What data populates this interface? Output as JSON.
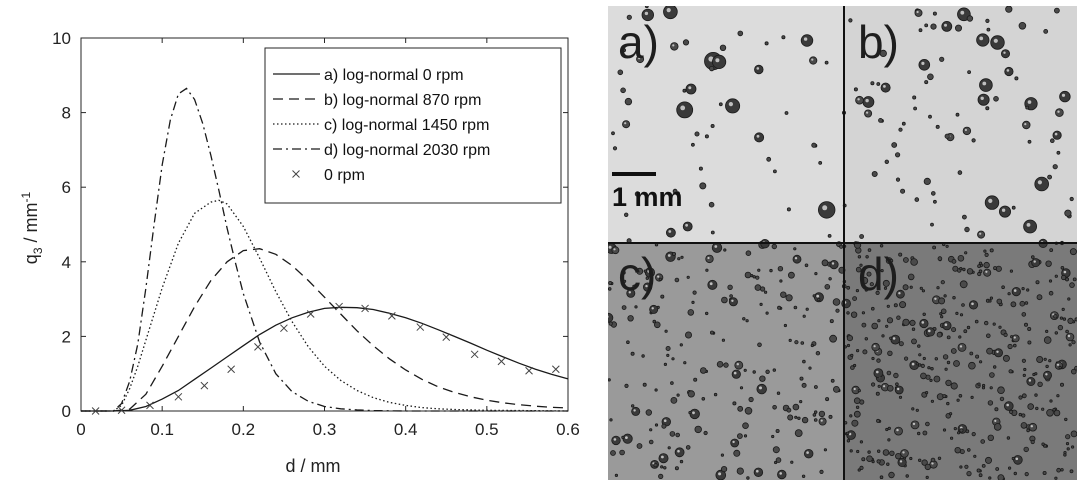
{
  "chart_data": {
    "type": "line",
    "xlabel": "d  / mm",
    "ylabel": "q",
    "ylabel_sub": "3",
    "ylabel_unit": "  / mm",
    "ylabel_unit_sup": "-1",
    "xlim": [
      0,
      0.6
    ],
    "ylim": [
      0,
      10
    ],
    "x_ticks": [
      0,
      0.1,
      0.2,
      0.3,
      0.4,
      0.5,
      0.6
    ],
    "x_tick_labels": [
      "0",
      "0.1",
      "0.2",
      "0.3",
      "0.4",
      "0.5",
      "0.6"
    ],
    "y_ticks": [
      0,
      2,
      4,
      6,
      8,
      10
    ],
    "y_tick_labels": [
      "0",
      "2",
      "4",
      "6",
      "8",
      "10"
    ],
    "grid": false,
    "legend_position": "top-right",
    "series": [
      {
        "name": "a) log-normal 0 rpm",
        "style": "solid",
        "x": [
          0,
          0.04,
          0.06,
          0.08,
          0.1,
          0.12,
          0.14,
          0.16,
          0.18,
          0.2,
          0.22,
          0.24,
          0.26,
          0.28,
          0.3,
          0.32,
          0.34,
          0.36,
          0.38,
          0.4,
          0.42,
          0.44,
          0.46,
          0.48,
          0.5,
          0.52,
          0.54,
          0.56,
          0.58,
          0.6
        ],
        "y": [
          0,
          0,
          0.02,
          0.12,
          0.32,
          0.55,
          0.85,
          1.15,
          1.45,
          1.75,
          2.05,
          2.3,
          2.5,
          2.65,
          2.75,
          2.78,
          2.77,
          2.72,
          2.62,
          2.5,
          2.35,
          2.18,
          2.0,
          1.82,
          1.63,
          1.45,
          1.28,
          1.12,
          0.98,
          0.86
        ]
      },
      {
        "name": "b) log-normal 870 rpm",
        "style": "dashed",
        "x": [
          0,
          0.04,
          0.06,
          0.08,
          0.1,
          0.12,
          0.14,
          0.16,
          0.18,
          0.2,
          0.22,
          0.24,
          0.26,
          0.28,
          0.3,
          0.32,
          0.34,
          0.36,
          0.38,
          0.4,
          0.42,
          0.44,
          0.46,
          0.48,
          0.5,
          0.52,
          0.54,
          0.56,
          0.58,
          0.6
        ],
        "y": [
          0,
          0,
          0.05,
          0.45,
          1.2,
          2.0,
          2.8,
          3.5,
          4.0,
          4.3,
          4.35,
          4.2,
          3.9,
          3.5,
          3.05,
          2.6,
          2.15,
          1.75,
          1.4,
          1.1,
          0.85,
          0.65,
          0.5,
          0.38,
          0.29,
          0.22,
          0.17,
          0.13,
          0.1,
          0.08
        ]
      },
      {
        "name": "c) log-normal 1450 rpm",
        "style": "dotted",
        "x": [
          0,
          0.04,
          0.05,
          0.06,
          0.07,
          0.08,
          0.1,
          0.12,
          0.14,
          0.16,
          0.17,
          0.18,
          0.2,
          0.22,
          0.24,
          0.26,
          0.28,
          0.3,
          0.32,
          0.34,
          0.36,
          0.38,
          0.4,
          0.42,
          0.44,
          0.46,
          0.5,
          0.55,
          0.6
        ],
        "y": [
          0,
          0,
          0.15,
          0.6,
          1.2,
          1.9,
          3.3,
          4.5,
          5.3,
          5.6,
          5.65,
          5.55,
          4.95,
          4.1,
          3.2,
          2.4,
          1.72,
          1.2,
          0.82,
          0.55,
          0.36,
          0.23,
          0.15,
          0.09,
          0.06,
          0.04,
          0.02,
          0.01,
          0
        ]
      },
      {
        "name": "d) log-normal 2030 rpm",
        "style": "dashdot",
        "x": [
          0,
          0.04,
          0.05,
          0.06,
          0.07,
          0.08,
          0.09,
          0.1,
          0.11,
          0.12,
          0.13,
          0.14,
          0.15,
          0.16,
          0.17,
          0.18,
          0.19,
          0.2,
          0.22,
          0.24,
          0.26,
          0.28,
          0.3,
          0.32,
          0.34,
          0.36,
          0.4,
          0.5,
          0.6
        ],
        "y": [
          0,
          0,
          0.2,
          0.8,
          1.8,
          3.3,
          5.0,
          6.6,
          7.8,
          8.5,
          8.65,
          8.35,
          7.7,
          6.85,
          5.9,
          4.9,
          4.0,
          3.15,
          1.85,
          1.0,
          0.52,
          0.26,
          0.12,
          0.06,
          0.03,
          0.01,
          0,
          0,
          0
        ]
      },
      {
        "name": "0 rpm",
        "style": "markers-x",
        "x": [
          0.018,
          0.05,
          0.085,
          0.12,
          0.152,
          0.185,
          0.218,
          0.25,
          0.283,
          0.318,
          0.35,
          0.383,
          0.418,
          0.45,
          0.485,
          0.518,
          0.552,
          0.585
        ],
        "y": [
          0,
          0.02,
          0.15,
          0.38,
          0.68,
          1.12,
          1.72,
          2.22,
          2.6,
          2.8,
          2.75,
          2.55,
          2.25,
          1.98,
          1.52,
          1.33,
          1.08,
          1.12
        ]
      }
    ]
  },
  "photos": {
    "panels": [
      {
        "id": "a",
        "label": "a)"
      },
      {
        "id": "b",
        "label": "b)"
      },
      {
        "id": "c",
        "label": "c)"
      },
      {
        "id": "d",
        "label": "d)"
      }
    ],
    "scale_bar_label": "1 mm"
  }
}
